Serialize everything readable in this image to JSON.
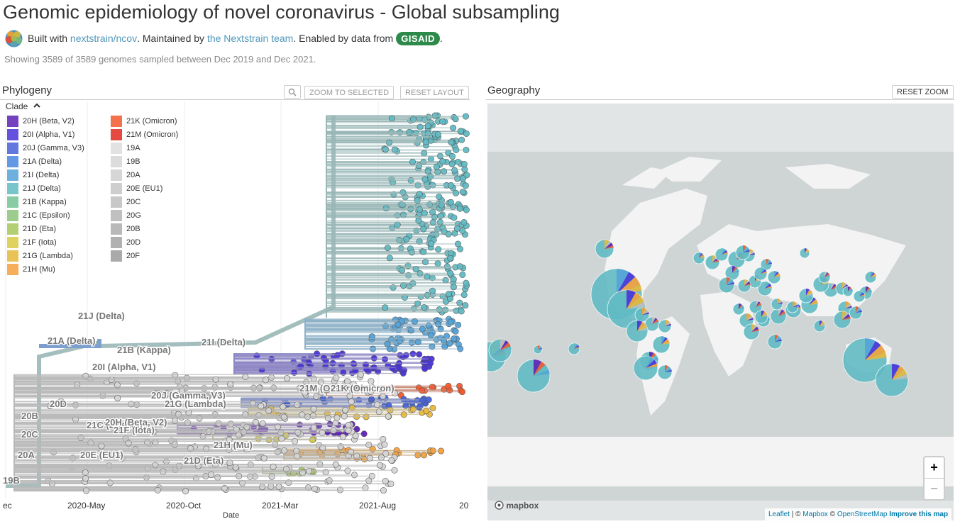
{
  "header": {
    "title": "Genomic epidemiology of novel coronavirus - Global subsampling",
    "built_with": "Built with",
    "repo_link": "nextstrain/ncov",
    "maintained_by": ". Maintained by",
    "team_link": "the Nextstrain team",
    "enabled_by": ". Enabled by data from",
    "gisaid": "GISAID",
    "period": ".",
    "summary": "Showing 3589 of 3589 genomes sampled between Dec 2019 and Dec 2021."
  },
  "phylogeny": {
    "title": "Phylogeny",
    "zoom_selected": "ZOOM TO SELECTED",
    "reset_layout": "RESET LAYOUT",
    "legend_title": "Clade",
    "legend": [
      {
        "label": "20H (Beta, V2)",
        "color": "#5e22b5"
      },
      {
        "label": "20I (Alpha, V1)",
        "color": "#4a34d9"
      },
      {
        "label": "20J (Gamma, V3)",
        "color": "#4662d9"
      },
      {
        "label": "21A (Delta)",
        "color": "#4a86e0"
      },
      {
        "label": "21I (Delta)",
        "color": "#55a3d8"
      },
      {
        "label": "21J (Delta)",
        "color": "#62bbc4"
      },
      {
        "label": "21B (Kappa)",
        "color": "#75c393"
      },
      {
        "label": "21C (Epsilon)",
        "color": "#8cc579"
      },
      {
        "label": "21D (Eta)",
        "color": "#a6c75c"
      },
      {
        "label": "21F (Iota)",
        "color": "#d8cc43"
      },
      {
        "label": "21G (Lambda)",
        "color": "#e7b93c"
      },
      {
        "label": "21H (Mu)",
        "color": "#f5a13b"
      },
      {
        "label": "21K (Omicron)",
        "color": "#f2592d"
      },
      {
        "label": "21M (Omicron)",
        "color": "#e02a22"
      },
      {
        "label": "19A",
        "color": "#dddddd"
      },
      {
        "label": "19B",
        "color": "#d6d6d6"
      },
      {
        "label": "20A",
        "color": "#cfcfcf"
      },
      {
        "label": "20E (EU1)",
        "color": "#c6c6c6"
      },
      {
        "label": "20C",
        "color": "#bfbfbf"
      },
      {
        "label": "20G",
        "color": "#b6b6b6"
      },
      {
        "label": "20B",
        "color": "#adadad"
      },
      {
        "label": "20D",
        "color": "#a4a4a4"
      },
      {
        "label": "20F",
        "color": "#9c9c9c"
      }
    ],
    "branch_labels": [
      {
        "text": "21J (Delta)"
      },
      {
        "text": "21A (Delta)"
      },
      {
        "text": "21B (Kappa)"
      },
      {
        "text": "21I (Delta)"
      },
      {
        "text": "20I (Alpha, V1)"
      },
      {
        "text": "21M (Omicron)"
      },
      {
        "text": "21K (Omicron)"
      },
      {
        "text": "20J (Gamma, V3)"
      },
      {
        "text": "20D"
      },
      {
        "text": "21G (Lambda)"
      },
      {
        "text": "20B"
      },
      {
        "text": "21C (Epsilon)"
      },
      {
        "text": "20H (Beta, V2)"
      },
      {
        "text": "21F (Iota)"
      },
      {
        "text": "20C"
      },
      {
        "text": "21H (Mu)"
      },
      {
        "text": "20A"
      },
      {
        "text": "20E (EU1)"
      },
      {
        "text": "21D (Eta)"
      },
      {
        "text": "19B"
      }
    ],
    "x_ticks": [
      "ec",
      "2020-May",
      "2020-Oct",
      "2021-Mar",
      "2021-Aug",
      "20"
    ],
    "x_label": "Date"
  },
  "geography": {
    "title": "Geography",
    "reset_zoom": "RESET ZOOM",
    "zoom_in": "+",
    "zoom_out": "−",
    "mapbox": "mapbox",
    "attribution": {
      "leaflet": "Leaflet",
      "sep1": " | © ",
      "mapbox": "Mapbox",
      "sep2": " © ",
      "osm": "OpenStreetMap",
      "sep3": " ",
      "improve": "Improve this map"
    }
  }
}
